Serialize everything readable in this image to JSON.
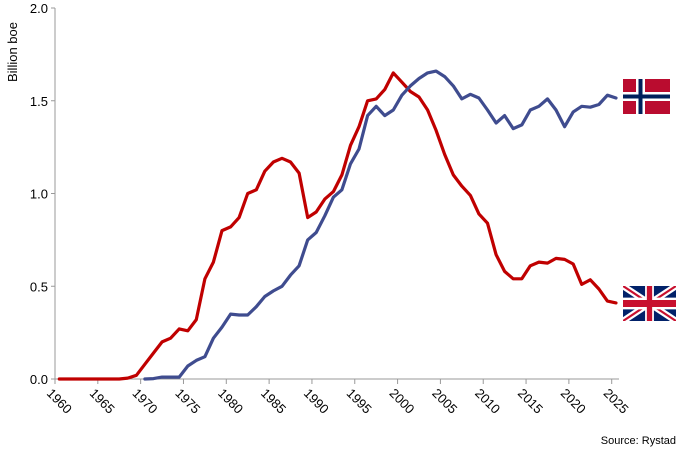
{
  "chart_data": {
    "type": "line",
    "title": "",
    "xlabel": "",
    "ylabel": "Billion boe",
    "source": "Source: Rystad",
    "xlim": [
      1960,
      2025
    ],
    "ylim": [
      0,
      2.0
    ],
    "y_ticks": [
      "0.0",
      "0.5",
      "1.0",
      "1.5",
      "2.0"
    ],
    "x_ticks": [
      "1960",
      "1965",
      "1970",
      "1975",
      "1980",
      "1985",
      "1990",
      "1995",
      "2000",
      "2005",
      "2010",
      "2015",
      "2020",
      "2025"
    ],
    "grid": false,
    "legend": "none (flags at line ends)",
    "series": [
      {
        "flag": "uk-flag",
        "color": "#c00000",
        "x": [
          1960,
          1961,
          1962,
          1963,
          1964,
          1965,
          1966,
          1967,
          1968,
          1969,
          1970,
          1971,
          1972,
          1973,
          1974,
          1975,
          1976,
          1977,
          1978,
          1979,
          1980,
          1981,
          1982,
          1983,
          1984,
          1985,
          1986,
          1987,
          1988,
          1989,
          1990,
          1991,
          1992,
          1993,
          1994,
          1995,
          1996,
          1997,
          1998,
          1999,
          2000,
          2001,
          2002,
          2003,
          2004,
          2005,
          2006,
          2007,
          2008,
          2009,
          2010,
          2011,
          2012,
          2013,
          2014,
          2015,
          2016,
          2017,
          2018,
          2019,
          2020,
          2021,
          2022,
          2023,
          2024,
          2025
        ],
        "values": [
          0,
          0,
          0,
          0,
          0,
          0,
          0,
          0,
          0.005,
          0.02,
          0.08,
          0.14,
          0.2,
          0.22,
          0.27,
          0.26,
          0.32,
          0.54,
          0.63,
          0.8,
          0.82,
          0.87,
          1.0,
          1.02,
          1.12,
          1.17,
          1.19,
          1.17,
          1.11,
          0.87,
          0.9,
          0.97,
          1.01,
          1.1,
          1.26,
          1.36,
          1.5,
          1.51,
          1.56,
          1.65,
          1.6,
          1.55,
          1.52,
          1.45,
          1.34,
          1.21,
          1.1,
          1.04,
          0.99,
          0.89,
          0.84,
          0.67,
          0.58,
          0.54,
          0.54,
          0.61,
          0.63,
          0.625,
          0.65,
          0.645,
          0.62,
          0.51,
          0.535,
          0.485,
          0.42,
          0.41
        ]
      },
      {
        "flag": "norway-flag",
        "color": "#3f4c8f",
        "x": [
          1970,
          1971,
          1972,
          1973,
          1974,
          1975,
          1976,
          1977,
          1978,
          1979,
          1980,
          1981,
          1982,
          1983,
          1984,
          1985,
          1986,
          1987,
          1988,
          1989,
          1990,
          1991,
          1992,
          1993,
          1994,
          1995,
          1996,
          1997,
          1998,
          1999,
          2000,
          2001,
          2002,
          2003,
          2004,
          2005,
          2006,
          2007,
          2008,
          2009,
          2010,
          2011,
          2012,
          2013,
          2014,
          2015,
          2016,
          2017,
          2018,
          2019,
          2020,
          2021,
          2022,
          2023,
          2024,
          2025
        ],
        "values": [
          0,
          0.002,
          0.01,
          0.01,
          0.01,
          0.07,
          0.1,
          0.12,
          0.22,
          0.28,
          0.35,
          0.345,
          0.345,
          0.39,
          0.445,
          0.475,
          0.5,
          0.56,
          0.61,
          0.75,
          0.79,
          0.88,
          0.98,
          1.02,
          1.16,
          1.24,
          1.42,
          1.47,
          1.42,
          1.45,
          1.53,
          1.58,
          1.62,
          1.65,
          1.66,
          1.63,
          1.58,
          1.51,
          1.535,
          1.515,
          1.45,
          1.38,
          1.42,
          1.35,
          1.37,
          1.45,
          1.47,
          1.51,
          1.45,
          1.36,
          1.44,
          1.47,
          1.465,
          1.48,
          1.53,
          1.515
        ]
      }
    ]
  }
}
